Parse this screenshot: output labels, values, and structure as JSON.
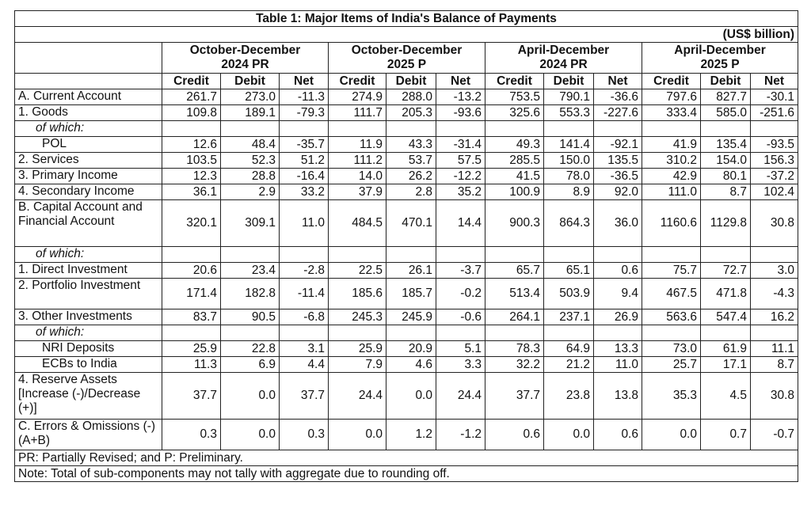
{
  "table": {
    "title": "Table 1: Major Items of India's Balance of Payments",
    "unit": "(US$ billion)",
    "periods": [
      {
        "line1": "October-December",
        "line2": "2024 PR"
      },
      {
        "line1": "October-December",
        "line2": "2025 P"
      },
      {
        "line1": "April-December",
        "line2": "2024 PR"
      },
      {
        "line1": "April-December",
        "line2": "2025 P"
      }
    ],
    "column_labels": [
      "Credit",
      "Debit",
      "Net",
      "Credit",
      "Debit",
      "Net",
      "Credit",
      "Debit",
      "Net",
      "Credit",
      "Debit",
      "Net"
    ],
    "rows": [
      {
        "label": "A. Current Account",
        "values": [
          "261.7",
          "273.0",
          "-11.3",
          "274.9",
          "288.0",
          "-13.2",
          "753.5",
          "790.1",
          "-36.6",
          "797.6",
          "827.7",
          "-30.1"
        ]
      },
      {
        "label": "1. Goods",
        "values": [
          "109.8",
          "189.1",
          "-79.3",
          "111.7",
          "205.3",
          "-93.6",
          "325.6",
          "553.3",
          "-227.6",
          "333.4",
          "585.0",
          "-251.6"
        ]
      },
      {
        "label": "of which:",
        "values": [
          "",
          "",
          "",
          "",
          "",
          "",
          "",
          "",
          "",
          "",
          "",
          ""
        ]
      },
      {
        "label": "POL",
        "values": [
          "12.6",
          "48.4",
          "-35.7",
          "11.9",
          "43.3",
          "-31.4",
          "49.3",
          "141.4",
          "-92.1",
          "41.9",
          "135.4",
          "-93.5"
        ]
      },
      {
        "label": "2. Services",
        "values": [
          "103.5",
          "52.3",
          "51.2",
          "111.2",
          "53.7",
          "57.5",
          "285.5",
          "150.0",
          "135.5",
          "310.2",
          "154.0",
          "156.3"
        ]
      },
      {
        "label": "3. Primary Income",
        "values": [
          "12.3",
          "28.8",
          "-16.4",
          "14.0",
          "26.2",
          "-12.2",
          "41.5",
          "78.0",
          "-36.5",
          "42.9",
          "80.1",
          "-37.2"
        ]
      },
      {
        "label": "4. Secondary Income",
        "values": [
          "36.1",
          "2.9",
          "33.2",
          "37.9",
          "2.8",
          "35.2",
          "100.9",
          "8.9",
          "92.0",
          "111.0",
          "8.7",
          "102.4"
        ]
      },
      {
        "label": "B. Capital Account and Financial Account",
        "values": [
          "320.1",
          "309.1",
          "11.0",
          "484.5",
          "470.1",
          "14.4",
          "900.3",
          "864.3",
          "36.0",
          "1160.6",
          "1129.8",
          "30.8"
        ]
      },
      {
        "label": "of which:",
        "values": [
          "",
          "",
          "",
          "",
          "",
          "",
          "",
          "",
          "",
          "",
          "",
          ""
        ]
      },
      {
        "label": "1. Direct Investment",
        "values": [
          "20.6",
          "23.4",
          "-2.8",
          "22.5",
          "26.1",
          "-3.7",
          "65.7",
          "65.1",
          "0.6",
          "75.7",
          "72.7",
          "3.0"
        ]
      },
      {
        "label": "2. Portfolio Investment",
        "values": [
          "171.4",
          "182.8",
          "-11.4",
          "185.6",
          "185.7",
          "-0.2",
          "513.4",
          "503.9",
          "9.4",
          "467.5",
          "471.8",
          "-4.3"
        ]
      },
      {
        "label": "3. Other Investments",
        "values": [
          "83.7",
          "90.5",
          "-6.8",
          "245.3",
          "245.9",
          "-0.6",
          "264.1",
          "237.1",
          "26.9",
          "563.6",
          "547.4",
          "16.2"
        ]
      },
      {
        "label": "of which:",
        "values": [
          "",
          "",
          "",
          "",
          "",
          "",
          "",
          "",
          "",
          "",
          "",
          ""
        ]
      },
      {
        "label": "NRI Deposits",
        "values": [
          "25.9",
          "22.8",
          "3.1",
          "25.9",
          "20.9",
          "5.1",
          "78.3",
          "64.9",
          "13.3",
          "73.0",
          "61.9",
          "11.1"
        ]
      },
      {
        "label": "ECBs to India",
        "values": [
          "11.3",
          "6.9",
          "4.4",
          "7.9",
          "4.6",
          "3.3",
          "32.2",
          "21.2",
          "11.0",
          "25.7",
          "17.1",
          "8.7"
        ]
      },
      {
        "label": "4. Reserve Assets [Increase (-)/Decrease (+)]",
        "values": [
          "37.7",
          "0.0",
          "37.7",
          "24.4",
          "0.0",
          "24.4",
          "37.7",
          "23.8",
          "13.8",
          "35.3",
          "4.5",
          "30.8"
        ]
      },
      {
        "label": "C. Errors & Omissions (-) (A+B)",
        "values": [
          "0.3",
          "0.0",
          "0.3",
          "0.0",
          "1.2",
          "-1.2",
          "0.6",
          "0.0",
          "0.6",
          "0.0",
          "0.7",
          "-0.7"
        ]
      }
    ],
    "footnotes": [
      "PR: Partially Revised; and P: Preliminary.",
      "Note: Total of sub-components may not tally with aggregate due to rounding off."
    ]
  }
}
